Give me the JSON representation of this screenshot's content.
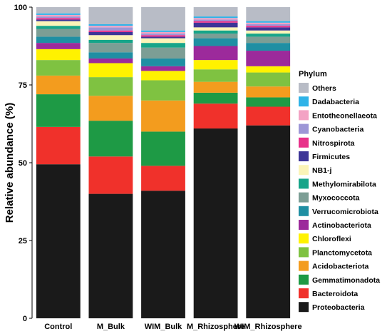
{
  "chart_data": {
    "type": "bar",
    "stacked": true,
    "title": "",
    "xlabel": "",
    "ylabel": "Relative abundance (%)",
    "ylim": [
      0,
      100
    ],
    "yticks": [
      0,
      25,
      50,
      75,
      100
    ],
    "categories": [
      "Control",
      "M_Bulk",
      "WIM_Bulk",
      "M_Rhizosphere",
      "WIM_Rhizosphere"
    ],
    "legend": {
      "title": "Phylum",
      "placement": "right"
    },
    "grid": false,
    "series": [
      {
        "name": "Proteobacteria",
        "color": "#1a1a1a",
        "values": [
          49.5,
          40.0,
          41.0,
          61.0,
          62.0
        ]
      },
      {
        "name": "Bacteroidota",
        "color": "#f0312b",
        "values": [
          12.0,
          12.0,
          8.0,
          8.0,
          6.0
        ]
      },
      {
        "name": "Gemmatimonadota",
        "color": "#1e9a45",
        "values": [
          10.5,
          11.5,
          11.0,
          3.5,
          3.0
        ]
      },
      {
        "name": "Acidobacteriota",
        "color": "#f39c1e",
        "values": [
          6.0,
          8.0,
          10.0,
          3.5,
          3.5
        ]
      },
      {
        "name": "Planctomycetota",
        "color": "#7fc241",
        "values": [
          5.0,
          6.0,
          6.5,
          4.0,
          4.5
        ]
      },
      {
        "name": "Chloroflexi",
        "color": "#fff200",
        "values": [
          3.5,
          4.5,
          3.0,
          3.0,
          2.0
        ]
      },
      {
        "name": "Actinobacteriota",
        "color": "#9c2a9b",
        "values": [
          2.0,
          1.5,
          1.5,
          4.5,
          5.0
        ]
      },
      {
        "name": "Verrucomicrobiota",
        "color": "#1f8fa3",
        "values": [
          2.0,
          2.0,
          2.5,
          2.5,
          2.5
        ]
      },
      {
        "name": "Myxococcota",
        "color": "#7c9e95",
        "values": [
          2.5,
          3.0,
          3.5,
          1.5,
          2.0
        ]
      },
      {
        "name": "Methylomirabilota",
        "color": "#17a589",
        "values": [
          1.0,
          1.0,
          1.5,
          1.0,
          1.0
        ]
      },
      {
        "name": "NB1-j",
        "color": "#fbf4b8",
        "values": [
          1.5,
          1.5,
          1.5,
          1.0,
          1.0
        ]
      },
      {
        "name": "Firmicutes",
        "color": "#3d3597",
        "values": [
          0.5,
          1.0,
          0.5,
          1.5,
          1.0
        ]
      },
      {
        "name": "Nitrospirota",
        "color": "#e8318a",
        "values": [
          0.5,
          0.5,
          0.5,
          0.5,
          0.5
        ]
      },
      {
        "name": "Cyanobacteria",
        "color": "#9d96d6",
        "values": [
          0.5,
          1.0,
          0.5,
          0.5,
          0.5
        ]
      },
      {
        "name": "Entotheonellaeota",
        "color": "#f3a3c4",
        "values": [
          0.5,
          0.5,
          0.5,
          0.5,
          0.5
        ]
      },
      {
        "name": "Dadabacteria",
        "color": "#2fb3e8",
        "values": [
          0.5,
          0.5,
          0.5,
          0.5,
          0.5
        ]
      },
      {
        "name": "Others",
        "color": "#b8bcc6",
        "values": [
          2.0,
          5.5,
          7.5,
          3.0,
          4.5
        ]
      }
    ],
    "legend_order": [
      "Others",
      "Dadabacteria",
      "Entotheonellaeota",
      "Cyanobacteria",
      "Nitrospirota",
      "Firmicutes",
      "NB1-j",
      "Methylomirabilota",
      "Myxococcota",
      "Verrucomicrobiota",
      "Actinobacteriota",
      "Chloroflexi",
      "Planctomycetota",
      "Acidobacteriota",
      "Gemmatimonadota",
      "Bacteroidota",
      "Proteobacteria"
    ]
  }
}
